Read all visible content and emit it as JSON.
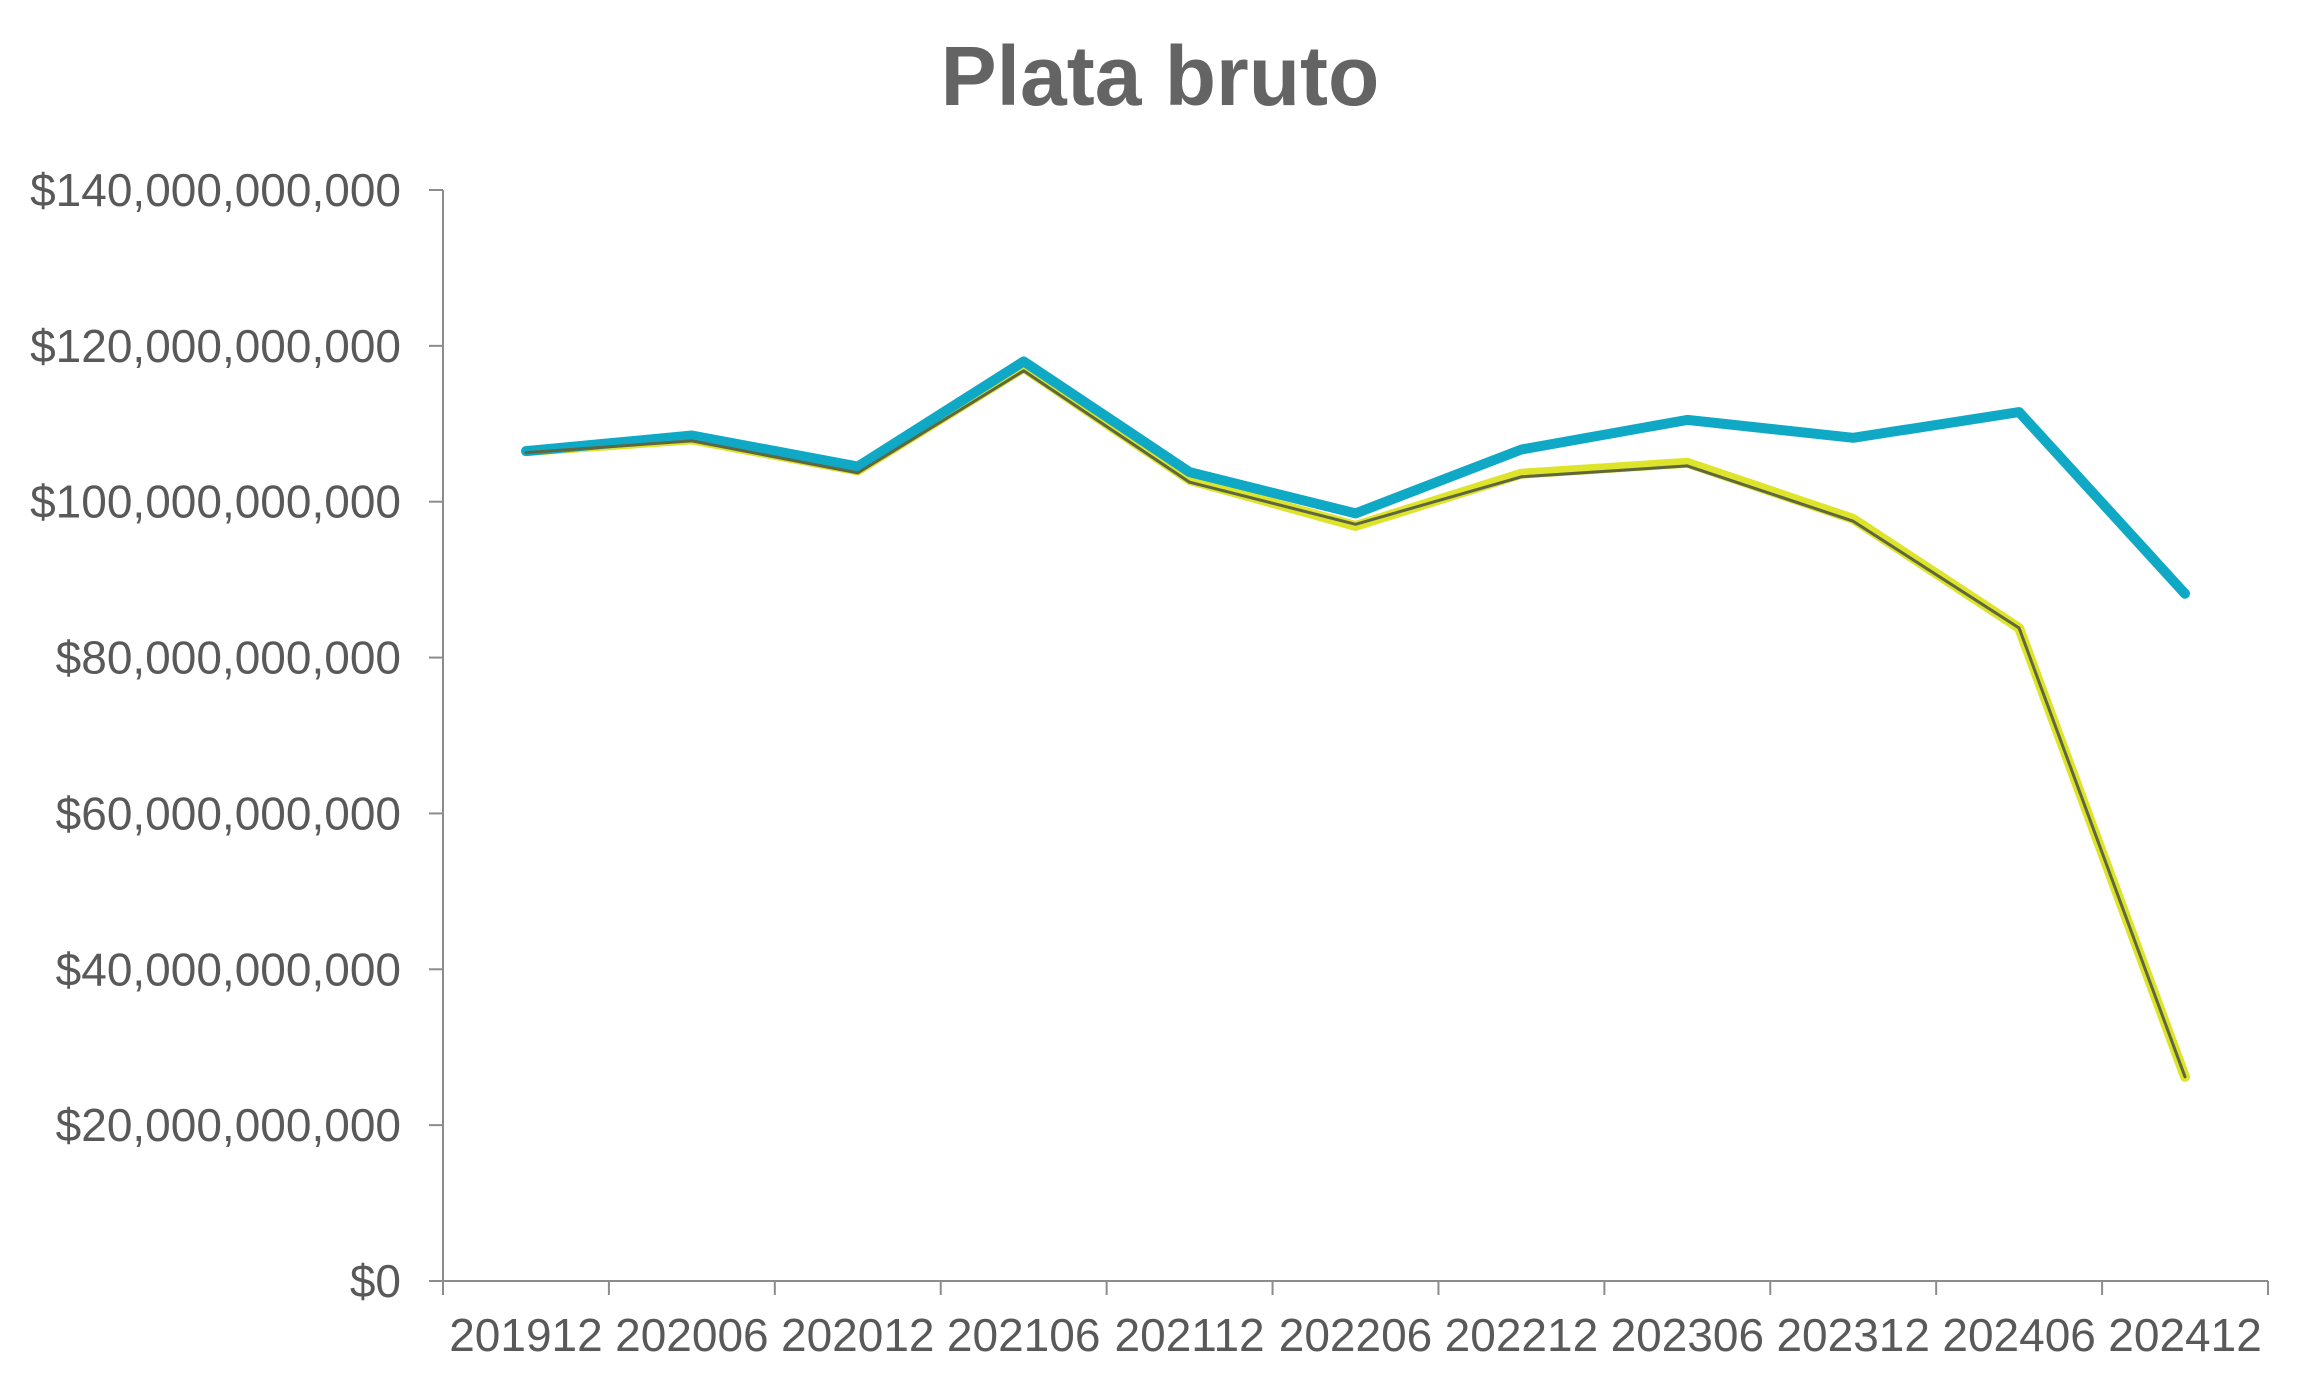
{
  "chart_data": {
    "type": "line",
    "title": "Plata bruto",
    "xlabel": "",
    "ylabel": "",
    "categories": [
      "201912",
      "202006",
      "202012",
      "202106",
      "202112",
      "202206",
      "202212",
      "202306",
      "202312",
      "202406",
      "202412"
    ],
    "ylim": [
      0,
      140000000000
    ],
    "y_ticks": [
      0,
      20000000000,
      40000000000,
      60000000000,
      80000000000,
      100000000000,
      120000000000,
      140000000000
    ],
    "y_tick_labels": [
      "$0",
      "$20,000,000,000",
      "$40,000,000,000",
      "$60,000,000,000",
      "$80,000,000,000",
      "$100,000,000,000",
      "$120,000,000,000",
      "$140,000,000,000"
    ],
    "grid": false,
    "legend": "none",
    "series": [
      {
        "color": "#0FA9C6",
        "values": [
          106500000000,
          108500000000,
          104500000000,
          118000000000,
          103800000000,
          98500000000,
          106700000000,
          110500000000,
          108200000000,
          111500000000,
          88200000000
        ]
      },
      {
        "color": "#DDE42A",
        "values": [
          106500000000,
          108000000000,
          104000000000,
          117200000000,
          102800000000,
          96900000000,
          103600000000,
          105000000000,
          97800000000,
          83800000000,
          26200000000
        ]
      },
      {
        "color": "#5F6740",
        "values": [
          106300000000,
          107800000000,
          103700000000,
          116800000000,
          102500000000,
          97100000000,
          103200000000,
          104600000000,
          97500000000,
          83800000000,
          26200000000
        ]
      }
    ]
  }
}
